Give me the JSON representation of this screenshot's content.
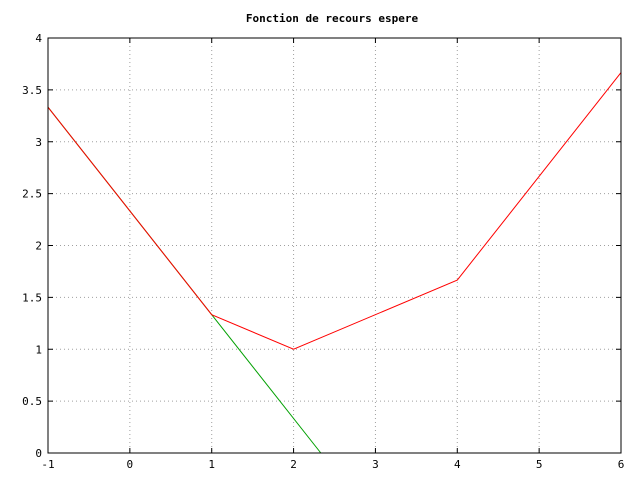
{
  "chart_data": {
    "type": "line",
    "title": "Fonction de recours espere",
    "xlabel": "",
    "ylabel": "",
    "xlim": [
      -1,
      6
    ],
    "ylim": [
      0,
      4
    ],
    "x_ticks": [
      -1,
      0,
      1,
      2,
      3,
      4,
      5,
      6
    ],
    "y_ticks": [
      0,
      0.5,
      1,
      1.5,
      2,
      2.5,
      3,
      3.5,
      4
    ],
    "x_tick_labels": [
      "-1",
      "0",
      "1",
      "2",
      "3",
      "4",
      "5",
      "6"
    ],
    "y_tick_labels": [
      "0",
      "0.5",
      "1",
      "1.5",
      "2",
      "2.5",
      "3",
      "3.5",
      "4"
    ],
    "grid": true,
    "series": [
      {
        "color": "#ff0000",
        "points": [
          [
            -1,
            3.333
          ],
          [
            1,
            1.333
          ],
          [
            2,
            1.0
          ],
          [
            4,
            1.667
          ],
          [
            6,
            3.667
          ]
        ]
      },
      {
        "color": "#00a000",
        "points": [
          [
            -1,
            3.333
          ],
          [
            2.333,
            0
          ]
        ]
      }
    ]
  }
}
